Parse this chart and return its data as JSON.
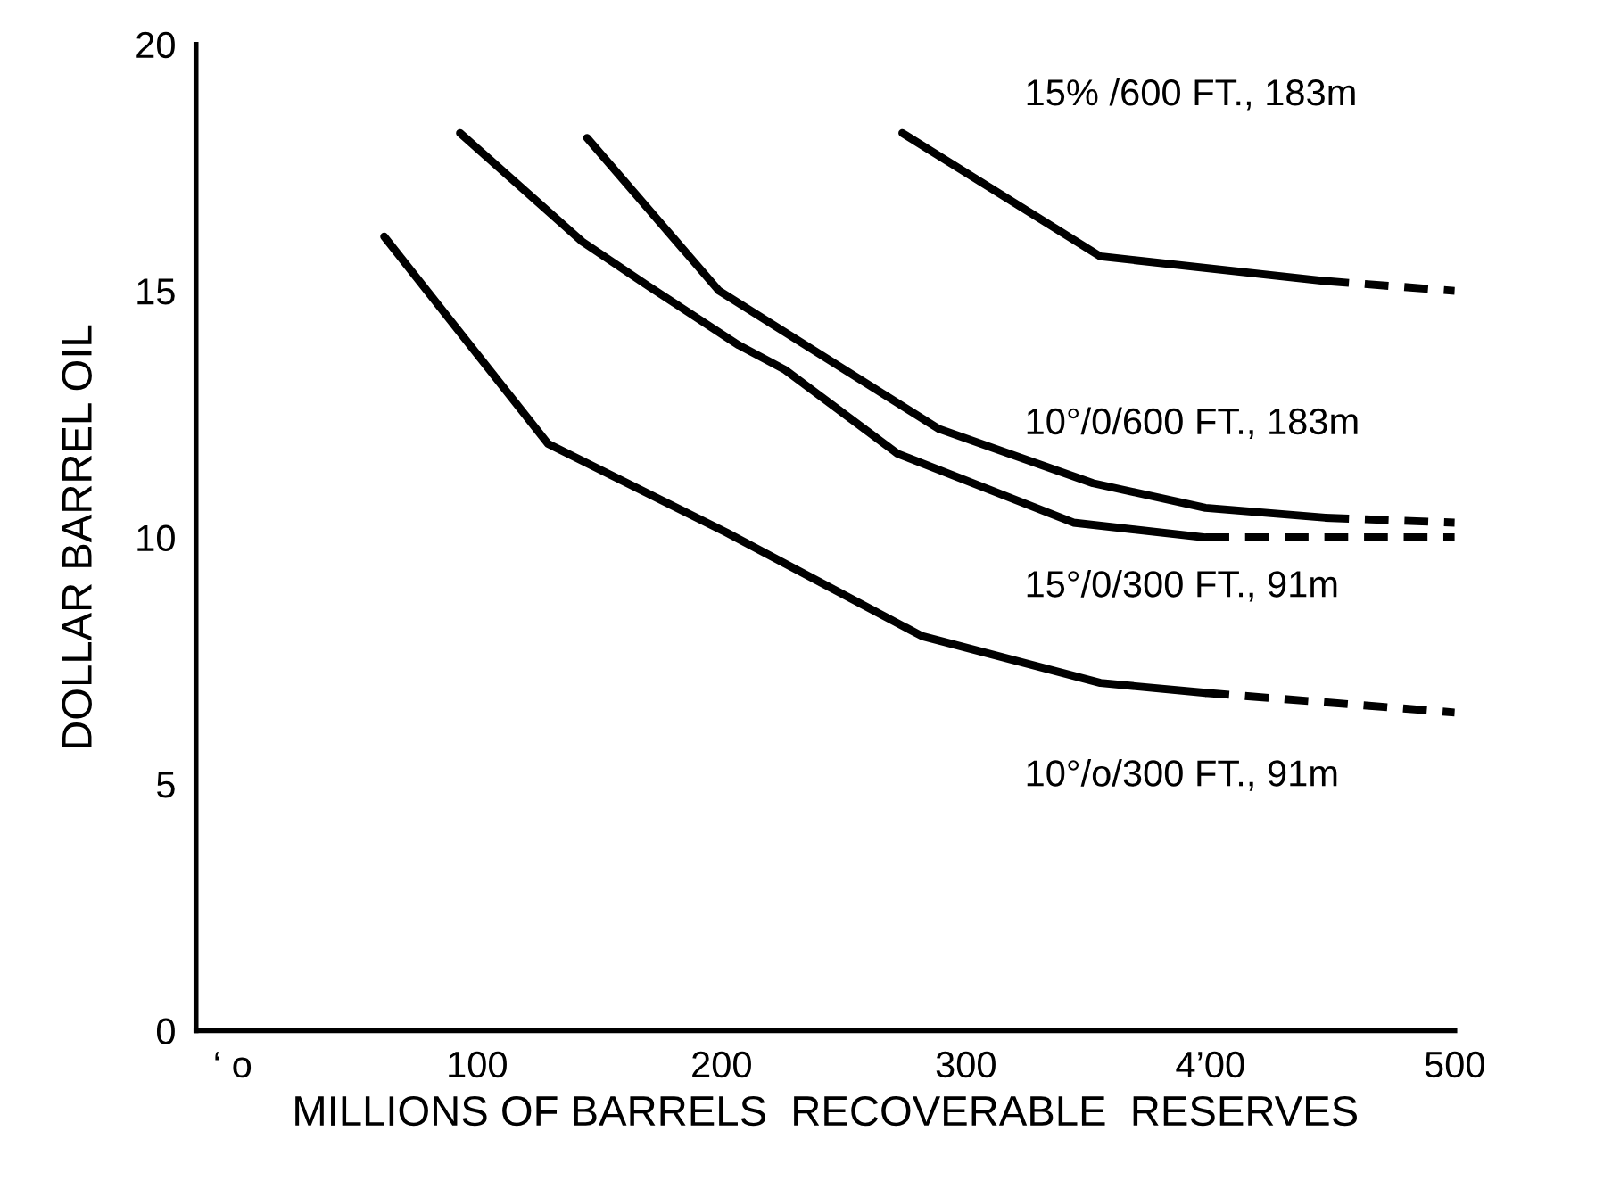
{
  "chart_data": {
    "type": "line",
    "xlabel": "MILLIONS OF BARRELS  RECOVERABLE  RESERVES",
    "ylabel": "DOLLAR BARREL OIL",
    "xlim": [
      -15,
      500
    ],
    "ylim": [
      0,
      20
    ],
    "xticks": [
      {
        "value": 0,
        "label": "‘ o"
      },
      100,
      200,
      300,
      {
        "value": 400,
        "label": "4’00"
      },
      500
    ],
    "yticks": [
      0,
      5,
      10,
      15,
      20
    ],
    "grid": false,
    "legend": false,
    "marker": "none",
    "series": [
      {
        "name": "15% /600 FT., 183m",
        "color": "#000000",
        "line_style": "solid",
        "x": [
          274,
          355,
          447
        ],
        "values": [
          18.2,
          15.7,
          15.2
        ]
      },
      {
        "color": "#000000",
        "line_style": "dashed",
        "x": [
          447,
          500
        ],
        "values": [
          15.2,
          15.0
        ]
      },
      {
        "name": "10°/0/600 FT., 183m",
        "color": "#000000",
        "line_style": "solid",
        "x": [
          145,
          199,
          289,
          352,
          398,
          447
        ],
        "values": [
          18.1,
          15.0,
          12.2,
          11.1,
          10.6,
          10.4
        ]
      },
      {
        "color": "#000000",
        "line_style": "dashed",
        "x": [
          447,
          500
        ],
        "values": [
          10.4,
          10.3
        ]
      },
      {
        "name": "15°/0/300 FT., 91m",
        "color": "#000000",
        "line_style": "solid",
        "x": [
          93,
          143,
          170,
          207,
          226,
          272,
          344,
          398
        ],
        "values": [
          18.2,
          16.0,
          15.1,
          13.9,
          13.4,
          11.7,
          10.3,
          10.0
        ]
      },
      {
        "color": "#000000",
        "line_style": "dashed",
        "x": [
          398,
          500
        ],
        "values": [
          10.0,
          10.0
        ]
      },
      {
        "name": "10°/o/300 FT., 91m",
        "color": "#000000",
        "line_style": "solid",
        "x": [
          62,
          129,
          202,
          282,
          355,
          398
        ],
        "values": [
          16.1,
          11.9,
          10.1,
          8.0,
          7.05,
          6.85
        ]
      },
      {
        "color": "#000000",
        "line_style": "dashed",
        "x": [
          398,
          500
        ],
        "values": [
          6.85,
          6.45
        ]
      }
    ]
  }
}
